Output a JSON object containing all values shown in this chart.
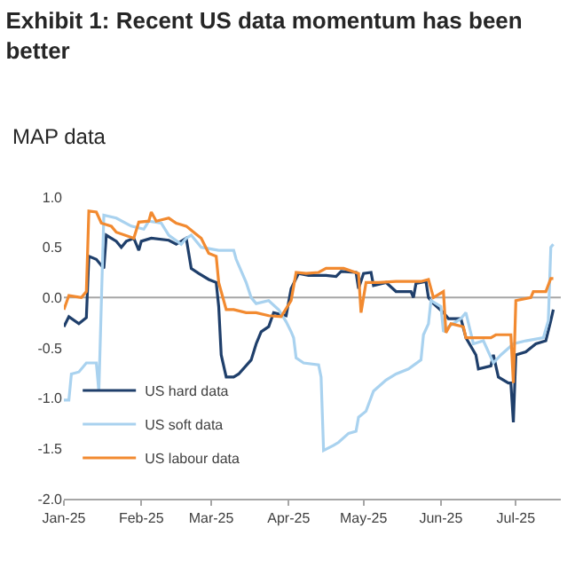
{
  "chart_data": {
    "type": "line",
    "title": "Exhibit 1: Recent US data momentum has been better",
    "subtitle": "MAP data",
    "xlim": [
      "2025-01-01",
      "2025-07-19"
    ],
    "xticks": [
      {
        "value": "2025-01-01",
        "label": "Jan-25"
      },
      {
        "value": "2025-02-01",
        "label": "Feb-25"
      },
      {
        "value": "2025-03-01",
        "label": "Mar-25"
      },
      {
        "value": "2025-04-01",
        "label": "Apr-25"
      },
      {
        "value": "2025-05-01",
        "label": "May-25"
      },
      {
        "value": "2025-06-01",
        "label": "Jun-25"
      },
      {
        "value": "2025-07-01",
        "label": "Jul-25"
      }
    ],
    "ylim": [
      -2,
      1
    ],
    "yticks": [
      {
        "value": -2,
        "label": "-2.0"
      },
      {
        "value": -1.5,
        "label": "-1.5"
      },
      {
        "value": -1,
        "label": "-1.0"
      },
      {
        "value": -0.5,
        "label": "-0.5"
      },
      {
        "value": 0,
        "label": "0.0"
      },
      {
        "value": 0.5,
        "label": "0.5"
      },
      {
        "value": 1,
        "label": "1.0"
      }
    ],
    "ref_lines": [
      {
        "axis": "y",
        "value": 0,
        "color": "#a6a6a6"
      }
    ],
    "grid": false,
    "legend": "bottom left",
    "marker": "none",
    "line_style": "solid",
    "series": [
      {
        "name": "US hard data",
        "color": "#1f3f6b",
        "x": [
          "2025-01-01",
          "2025-01-03",
          "2025-01-07",
          "2025-01-10",
          "2025-01-11",
          "2025-01-14",
          "2025-01-17",
          "2025-01-18",
          "2025-01-22",
          "2025-01-24",
          "2025-01-26",
          "2025-01-29",
          "2025-01-31",
          "2025-02-01",
          "2025-02-05",
          "2025-02-12",
          "2025-02-15",
          "2025-02-19",
          "2025-02-21",
          "2025-02-24",
          "2025-02-28",
          "2025-03-03",
          "2025-03-04",
          "2025-03-05",
          "2025-03-07",
          "2025-03-10",
          "2025-03-12",
          "2025-03-17",
          "2025-03-19",
          "2025-03-21",
          "2025-03-24",
          "2025-03-26",
          "2025-03-31",
          "2025-04-02",
          "2025-04-05",
          "2025-04-09",
          "2025-04-16",
          "2025-04-20",
          "2025-04-22",
          "2025-04-28",
          "2025-04-29",
          "2025-05-01",
          "2025-05-04",
          "2025-05-05",
          "2025-05-10",
          "2025-05-14",
          "2025-05-20",
          "2025-05-21",
          "2025-05-22",
          "2025-05-26",
          "2025-05-27",
          "2025-05-29",
          "2025-06-02",
          "2025-06-04",
          "2025-06-09",
          "2025-06-11",
          "2025-06-15",
          "2025-06-16",
          "2025-06-21",
          "2025-06-22",
          "2025-06-24",
          "2025-06-28",
          "2025-06-29",
          "2025-06-30",
          "2025-07-01",
          "2025-07-05",
          "2025-07-09",
          "2025-07-13",
          "2025-07-15",
          "2025-07-16"
        ],
        "values": [
          -0.29,
          -0.19,
          -0.26,
          -0.2,
          0.41,
          0.38,
          0.29,
          0.62,
          0.56,
          0.5,
          0.56,
          0.59,
          0.47,
          0.56,
          0.59,
          0.57,
          0.53,
          0.59,
          0.29,
          0.24,
          0.18,
          0.15,
          -0.09,
          -0.57,
          -0.79,
          -0.79,
          -0.76,
          -0.62,
          -0.46,
          -0.34,
          -0.29,
          -0.15,
          -0.18,
          0.09,
          0.24,
          0.22,
          0.22,
          0.21,
          0.26,
          0.25,
          0.09,
          0.24,
          0.25,
          0.12,
          0.15,
          0.06,
          0.06,
          0.0,
          0.14,
          0.16,
          0.0,
          -0.06,
          -0.15,
          -0.21,
          -0.21,
          -0.4,
          -0.57,
          -0.71,
          -0.68,
          -0.57,
          -0.79,
          -0.85,
          -0.85,
          -1.24,
          -0.57,
          -0.54,
          -0.46,
          -0.43,
          -0.23,
          -0.12
        ]
      },
      {
        "name": "US soft data",
        "color": "#a9d2ef",
        "x": [
          "2025-01-01",
          "2025-01-03",
          "2025-01-04",
          "2025-01-07",
          "2025-01-10",
          "2025-01-14",
          "2025-01-15",
          "2025-01-17",
          "2025-01-22",
          "2025-01-28",
          "2025-02-02",
          "2025-02-04",
          "2025-02-09",
          "2025-02-12",
          "2025-02-17",
          "2025-02-19",
          "2025-02-21",
          "2025-02-25",
          "2025-03-04",
          "2025-03-10",
          "2025-03-11",
          "2025-03-15",
          "2025-03-17",
          "2025-03-19",
          "2025-03-24",
          "2025-03-28",
          "2025-03-31",
          "2025-04-02",
          "2025-04-03",
          "2025-04-04",
          "2025-04-07",
          "2025-04-13",
          "2025-04-14",
          "2025-04-15",
          "2025-04-19",
          "2025-04-21",
          "2025-04-25",
          "2025-04-28",
          "2025-04-29",
          "2025-05-02",
          "2025-05-05",
          "2025-05-10",
          "2025-05-14",
          "2025-05-19",
          "2025-05-24",
          "2025-05-25",
          "2025-05-27",
          "2025-05-28",
          "2025-06-01",
          "2025-06-02",
          "2025-06-04",
          "2025-06-09",
          "2025-06-11",
          "2025-06-14",
          "2025-06-18",
          "2025-06-22",
          "2025-06-25",
          "2025-06-30",
          "2025-07-05",
          "2025-07-12",
          "2025-07-14",
          "2025-07-15",
          "2025-07-16"
        ],
        "values": [
          -1.02,
          -1.02,
          -0.76,
          -0.74,
          -0.65,
          -0.65,
          -0.93,
          0.82,
          0.79,
          0.71,
          0.68,
          0.76,
          0.74,
          0.62,
          0.53,
          0.59,
          0.62,
          0.5,
          0.47,
          0.47,
          0.38,
          0.15,
          0.0,
          -0.06,
          -0.03,
          -0.12,
          -0.24,
          -0.34,
          -0.4,
          -0.6,
          -0.65,
          -0.67,
          -0.79,
          -1.52,
          -1.47,
          -1.44,
          -1.35,
          -1.33,
          -1.19,
          -1.13,
          -0.93,
          -0.82,
          -0.76,
          -0.71,
          -0.62,
          -0.37,
          -0.26,
          -0.03,
          -0.09,
          -0.34,
          -0.29,
          -0.21,
          -0.15,
          -0.46,
          -0.43,
          -0.65,
          -0.57,
          -0.46,
          -0.43,
          -0.4,
          -0.23,
          0.5,
          0.53
        ]
      },
      {
        "name": "US labour data",
        "color": "#f28a30",
        "x": [
          "2025-01-01",
          "2025-01-03",
          "2025-01-08",
          "2025-01-10",
          "2025-01-11",
          "2025-01-14",
          "2025-01-16",
          "2025-01-20",
          "2025-01-22",
          "2025-01-29",
          "2025-01-31",
          "2025-02-04",
          "2025-02-05",
          "2025-02-07",
          "2025-02-12",
          "2025-02-15",
          "2025-02-19",
          "2025-02-22",
          "2025-02-25",
          "2025-02-28",
          "2025-03-03",
          "2025-03-04",
          "2025-03-07",
          "2025-03-10",
          "2025-03-15",
          "2025-03-19",
          "2025-03-24",
          "2025-03-29",
          "2025-04-02",
          "2025-04-04",
          "2025-04-08",
          "2025-04-13",
          "2025-04-16",
          "2025-04-23",
          "2025-04-29",
          "2025-04-30",
          "2025-05-02",
          "2025-05-07",
          "2025-05-14",
          "2025-05-24",
          "2025-05-27",
          "2025-05-29",
          "2025-06-02",
          "2025-06-03",
          "2025-06-05",
          "2025-06-10",
          "2025-06-11",
          "2025-06-21",
          "2025-06-23",
          "2025-06-29",
          "2025-06-30",
          "2025-07-01",
          "2025-07-07",
          "2025-07-08",
          "2025-07-13",
          "2025-07-15",
          "2025-07-16"
        ],
        "values": [
          -0.12,
          0.02,
          0.0,
          0.06,
          0.86,
          0.85,
          0.74,
          0.71,
          0.65,
          0.59,
          0.75,
          0.76,
          0.85,
          0.76,
          0.79,
          0.74,
          0.71,
          0.65,
          0.59,
          0.44,
          0.41,
          0.15,
          -0.12,
          -0.12,
          -0.15,
          -0.15,
          -0.18,
          -0.19,
          -0.03,
          0.25,
          0.24,
          0.25,
          0.29,
          0.29,
          0.24,
          -0.15,
          0.15,
          0.15,
          0.16,
          0.16,
          0.18,
          0.0,
          0.06,
          -0.35,
          -0.26,
          -0.29,
          -0.4,
          -0.4,
          -0.37,
          -0.37,
          -0.85,
          -0.03,
          0.0,
          0.06,
          0.06,
          0.19,
          0.19
        ]
      }
    ]
  }
}
